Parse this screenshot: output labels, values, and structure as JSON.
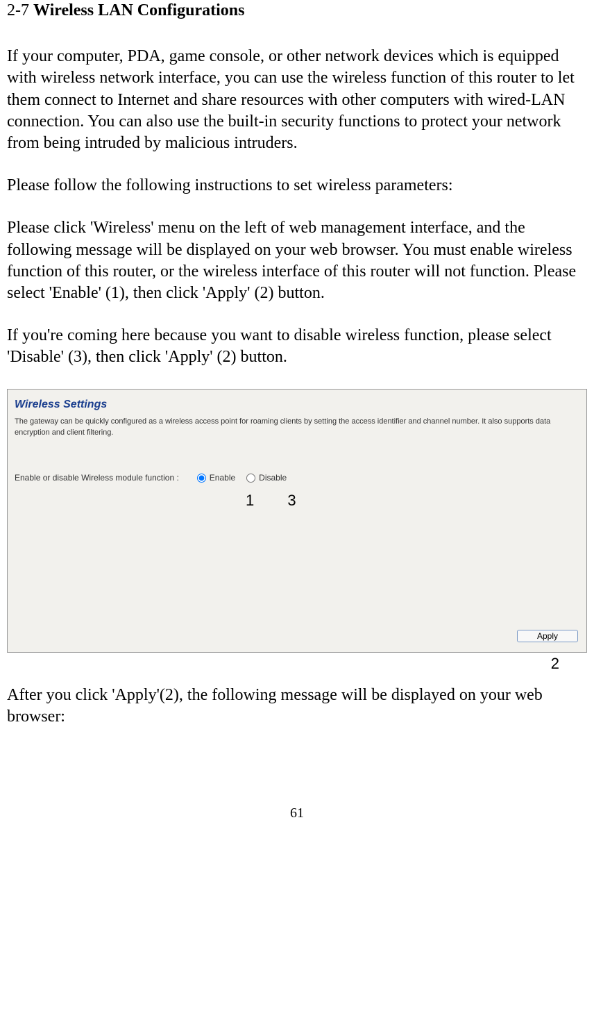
{
  "heading": {
    "number": "2-7 ",
    "title": "Wireless LAN Configurations"
  },
  "paragraphs": {
    "p1": "If your computer, PDA, game console, or other network devices which is equipped with wireless network interface, you can use the wireless function of this router to let them connect to Internet and share resources with other computers with wired-LAN connection. You can also use the built-in security functions to protect your network from being intruded by malicious intruders.",
    "p2": "Please follow the following instructions to set wireless parameters:",
    "p3": "Please click 'Wireless' menu on the left of web management interface, and the following message will be displayed on your web browser. You must enable wireless function of this router, or the wireless interface of this router will not function. Please select 'Enable' (1), then click 'Apply' (2) button.",
    "p4": "If you're coming here because you want to disable wireless function, please select 'Disable' (3), then click 'Apply' (2) button.",
    "p5": "After you click 'Apply'(2), the following message will be displayed on your web browser:"
  },
  "screenshot": {
    "title": "Wireless Settings",
    "description": "The gateway can be quickly configured as a wireless access point for roaming clients by setting the access identifier and channel number. It also supports data encryption and client filtering.",
    "radio_label": "Enable or disable Wireless module function :",
    "option_enable": "Enable",
    "option_disable": "Disable",
    "apply_button": "Apply",
    "background_color": "#f2f1ed",
    "title_color": "#1a3e8e"
  },
  "annotations": {
    "a1": "1",
    "a2": "2",
    "a3": "3"
  },
  "page_number": "61"
}
